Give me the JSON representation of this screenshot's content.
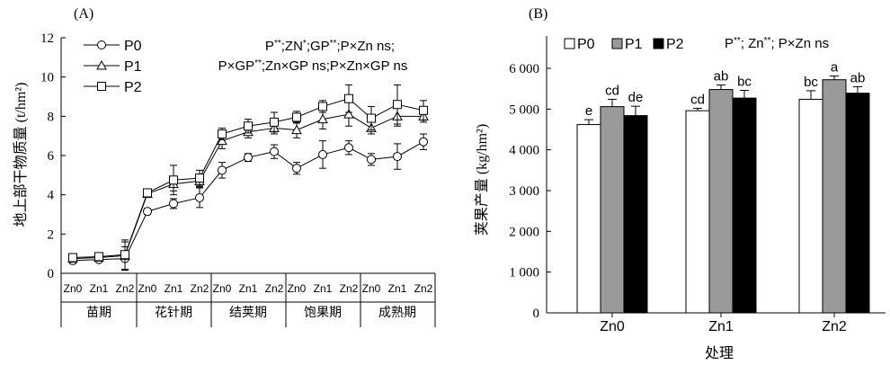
{
  "chart_data": [
    {
      "type": "line",
      "panel_label": "(A)",
      "ylabel": "地上部干物质量 (t/hm²)",
      "ylim": [
        0,
        12
      ],
      "yticks": [
        0,
        2,
        4,
        6,
        8,
        10,
        12
      ],
      "x": [
        "Zn0",
        "Zn1",
        "Zn2",
        "Zn0",
        "Zn1",
        "Zn2",
        "Zn0",
        "Zn1",
        "Zn2",
        "Zn0",
        "Zn1",
        "Zn2",
        "Zn0",
        "Zn1",
        "Zn2"
      ],
      "groups": [
        "苗期",
        "花针期",
        "结荚期",
        "饱果期",
        "成熟期"
      ],
      "stats_lines": [
        "P**;ZN*;GP**;P×Zn ns;",
        "P×GP**;Zn×GP ns;P×Zn×GP ns"
      ],
      "grid": false,
      "legend_position": "top-left",
      "series": [
        {
          "name": "P0",
          "marker": "circle",
          "values": [
            0.65,
            0.7,
            0.75,
            3.15,
            3.55,
            3.85,
            5.25,
            5.9,
            6.2,
            5.35,
            6.05,
            6.4,
            5.8,
            5.95,
            6.7
          ],
          "err": [
            0.15,
            0.1,
            0.6,
            0.15,
            0.25,
            0.5,
            0.4,
            0.2,
            0.35,
            0.3,
            0.7,
            0.35,
            0.3,
            0.65,
            0.4
          ]
        },
        {
          "name": "P1",
          "marker": "triangle",
          "values": [
            0.75,
            0.8,
            0.9,
            4.05,
            4.55,
            4.7,
            6.75,
            7.2,
            7.4,
            7.3,
            7.85,
            8.1,
            7.4,
            8.0,
            8.0
          ],
          "err": [
            0.15,
            0.1,
            0.7,
            0.15,
            0.35,
            0.3,
            0.4,
            0.3,
            0.3,
            0.4,
            0.5,
            0.6,
            0.3,
            0.5,
            0.3
          ]
        },
        {
          "name": "P2",
          "marker": "square",
          "values": [
            0.8,
            0.85,
            0.95,
            4.1,
            4.75,
            4.85,
            7.1,
            7.5,
            7.7,
            7.95,
            8.5,
            8.9,
            7.9,
            8.6,
            8.3
          ],
          "err": [
            0.15,
            0.1,
            0.75,
            0.2,
            0.75,
            0.4,
            0.3,
            0.35,
            0.5,
            0.3,
            0.3,
            0.7,
            0.6,
            1.0,
            0.5
          ]
        }
      ]
    },
    {
      "type": "bar",
      "panel_label": "(B)",
      "categories": [
        "Zn0",
        "Zn1",
        "Zn2"
      ],
      "xlabel": "处理",
      "ylabel": "荚果产量 (kg/hm²)",
      "ylim": [
        0,
        6000
      ],
      "yticks": [
        0,
        1000,
        2000,
        3000,
        4000,
        5000,
        6000
      ],
      "ytick_labels": [
        "0",
        "1 000",
        "2 000",
        "3 000",
        "4 000",
        "5 000",
        "6 000"
      ],
      "stats_text": "P**; Zn**; P×Zn ns",
      "grid": false,
      "legend_position": "top",
      "series": [
        {
          "name": "P0",
          "color": "#ffffff",
          "values": [
            4620,
            4960,
            5240
          ],
          "err": [
            120,
            60,
            210
          ],
          "letters": [
            "e",
            "cd",
            "bc"
          ]
        },
        {
          "name": "P1",
          "color": "#9a9a9a",
          "values": [
            5060,
            5480,
            5720
          ],
          "err": [
            180,
            110,
            90
          ],
          "letters": [
            "cd",
            "ab",
            "a"
          ]
        },
        {
          "name": "P2",
          "color": "#000000",
          "values": [
            4840,
            5270,
            5390
          ],
          "err": [
            230,
            190,
            160
          ],
          "letters": [
            "de",
            "bc",
            "ab"
          ]
        }
      ]
    }
  ]
}
